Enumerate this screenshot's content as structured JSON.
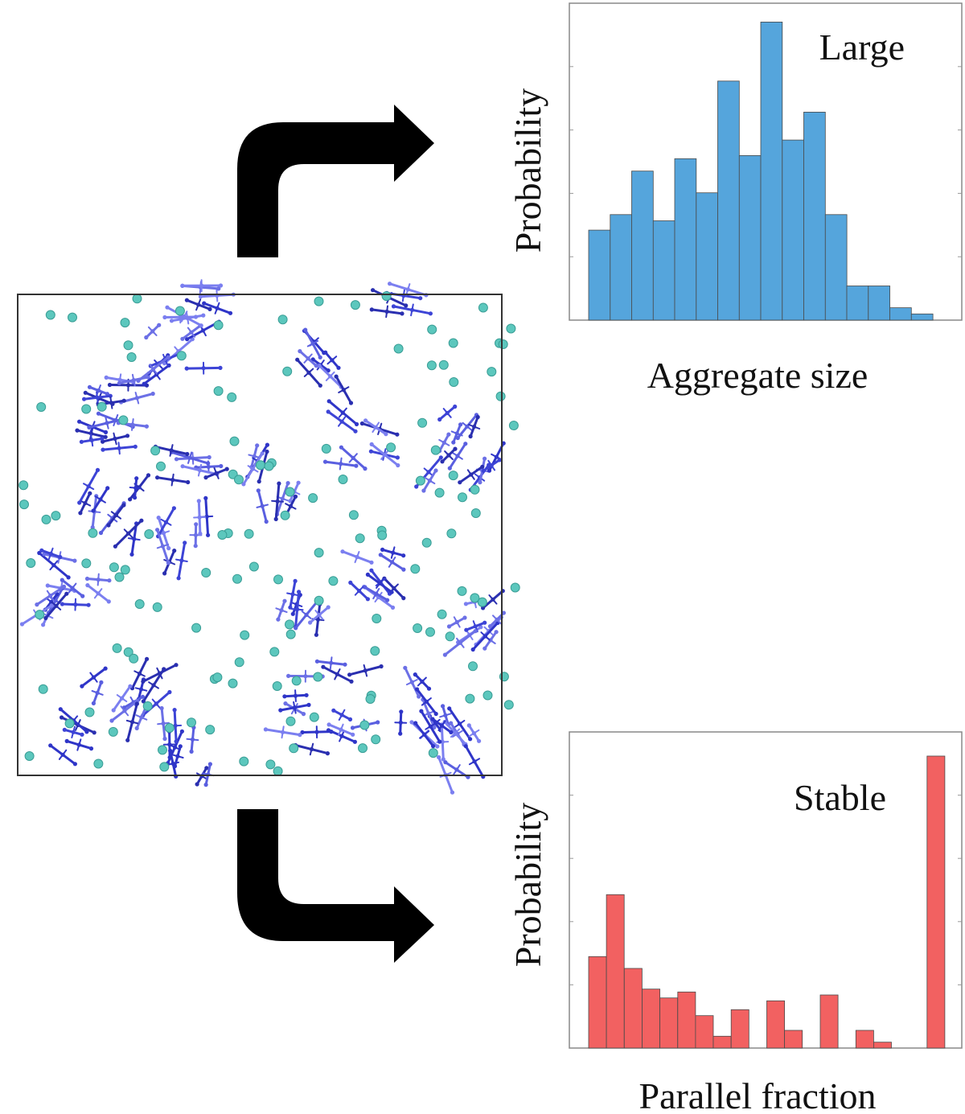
{
  "snapshot": {
    "description_icon": "molecular-simulation-box"
  },
  "arrows": {
    "up_icon": "curved-arrow-right",
    "down_icon": "curved-arrow-right"
  },
  "chart_data": [
    {
      "type": "bar",
      "title": "",
      "annotation": "Large",
      "xlabel": "Aggregate size",
      "ylabel": "Probability",
      "color": "#55A5DC",
      "values": [
        0.29,
        0.34,
        0.48,
        0.32,
        0.52,
        0.41,
        0.77,
        0.53,
        0.96,
        0.58,
        0.67,
        0.34,
        0.11,
        0.11,
        0.04,
        0.02
      ],
      "ylim": [
        0,
        1
      ],
      "grid": false
    },
    {
      "type": "bar",
      "title": "",
      "annotation": "Stable",
      "xlabel": "Parallel fraction",
      "ylabel": "Probability",
      "color": "#F26161",
      "values": [
        0.31,
        0.52,
        0.27,
        0.2,
        0.17,
        0.19,
        0.11,
        0.04,
        0.13,
        0,
        0.16,
        0.06,
        0,
        0.18,
        0,
        0.06,
        0.02,
        0,
        0,
        0.99
      ],
      "ylim": [
        0,
        1.05
      ],
      "grid": false
    }
  ]
}
